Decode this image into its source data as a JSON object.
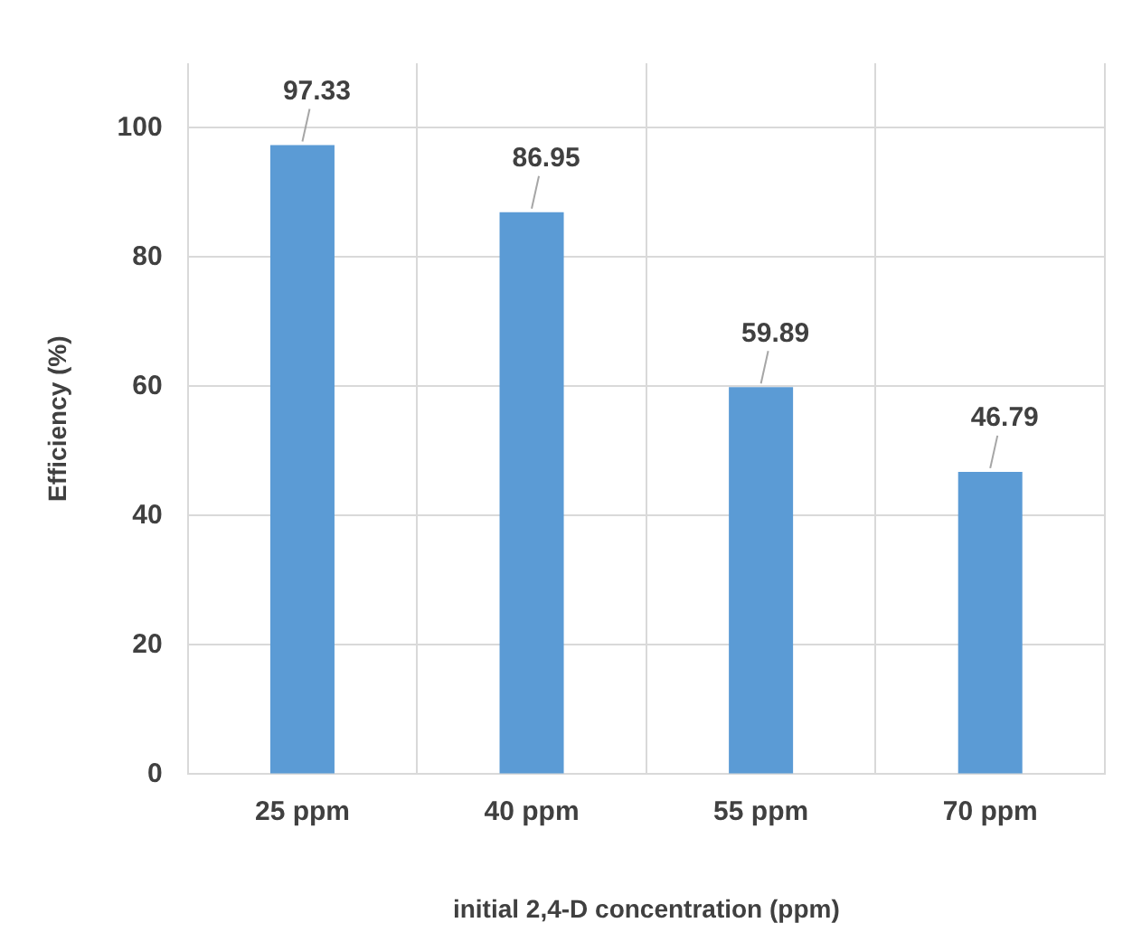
{
  "chart_data": {
    "type": "bar",
    "xlabel": "initial 2,4-D concentration (ppm)",
    "ylabel": "Efficiency (%)",
    "categories": [
      "25 ppm",
      "40 ppm",
      "55 ppm",
      "70 ppm"
    ],
    "values": [
      97.33,
      86.95,
      59.89,
      46.79
    ],
    "color": "#5b9bd5",
    "ylim": [
      0,
      110
    ],
    "yticks": [
      0,
      20,
      40,
      60,
      80,
      100
    ],
    "grid": true,
    "data_labels": true
  }
}
